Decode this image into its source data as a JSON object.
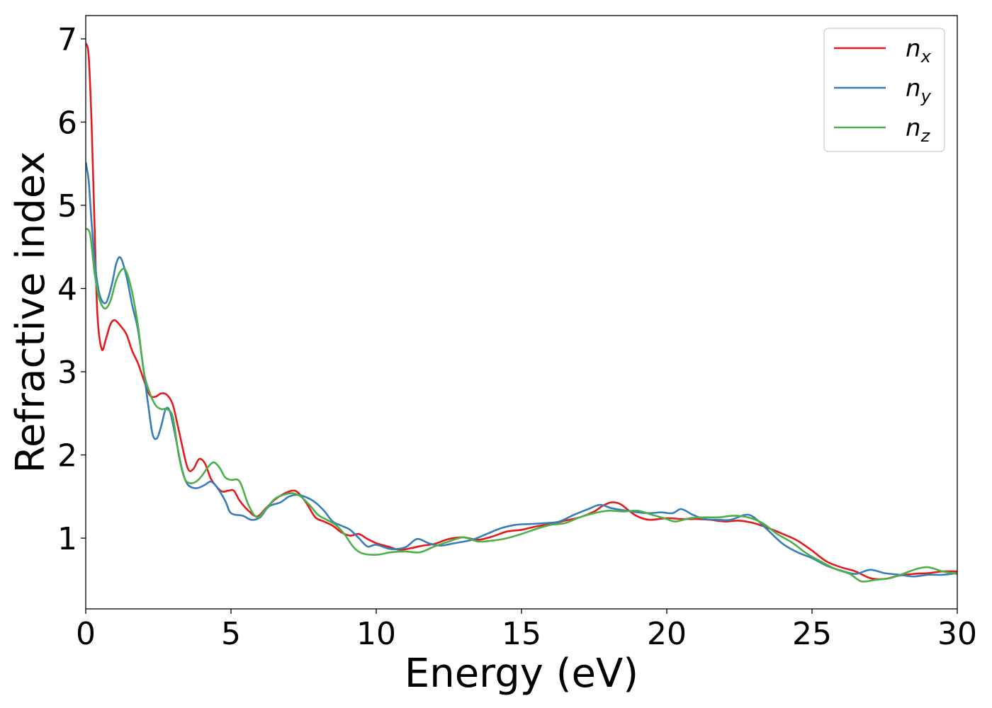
{
  "chart_data": {
    "type": "line",
    "xlabel": "Energy (eV)",
    "ylabel": "Refractive index",
    "xlim": [
      0,
      30
    ],
    "ylim": [
      0.15,
      7.28
    ],
    "xticks": [
      "0",
      "5",
      "10",
      "15",
      "20",
      "25",
      "30"
    ],
    "yticks": [
      "1",
      "2",
      "3",
      "4",
      "5",
      "6",
      "7"
    ],
    "grid": false,
    "legend_position": "top-right",
    "series": [
      {
        "name": "n_x",
        "legend_base": "n",
        "legend_sub": "x",
        "color": "#e41a1c",
        "points": [
          [
            0,
            6.95
          ],
          [
            0.1,
            6.8
          ],
          [
            0.2,
            6.0
          ],
          [
            0.3,
            4.8
          ],
          [
            0.4,
            3.7
          ],
          [
            0.55,
            3.27
          ],
          [
            0.7,
            3.4
          ],
          [
            0.85,
            3.57
          ],
          [
            1.0,
            3.62
          ],
          [
            1.2,
            3.55
          ],
          [
            1.4,
            3.45
          ],
          [
            1.6,
            3.25
          ],
          [
            1.8,
            3.1
          ],
          [
            2.0,
            2.9
          ],
          [
            2.2,
            2.72
          ],
          [
            2.4,
            2.7
          ],
          [
            2.6,
            2.74
          ],
          [
            2.8,
            2.72
          ],
          [
            3.0,
            2.6
          ],
          [
            3.2,
            2.3
          ],
          [
            3.5,
            1.85
          ],
          [
            3.7,
            1.83
          ],
          [
            3.9,
            1.95
          ],
          [
            4.1,
            1.9
          ],
          [
            4.3,
            1.72
          ],
          [
            4.5,
            1.62
          ],
          [
            4.7,
            1.56
          ],
          [
            4.9,
            1.57
          ],
          [
            5.1,
            1.57
          ],
          [
            5.3,
            1.45
          ],
          [
            5.6,
            1.33
          ],
          [
            5.9,
            1.26
          ],
          [
            6.2,
            1.36
          ],
          [
            6.5,
            1.46
          ],
          [
            6.8,
            1.53
          ],
          [
            7.1,
            1.57
          ],
          [
            7.3,
            1.55
          ],
          [
            7.6,
            1.42
          ],
          [
            7.9,
            1.25
          ],
          [
            8.2,
            1.2
          ],
          [
            8.5,
            1.15
          ],
          [
            8.8,
            1.07
          ],
          [
            9.1,
            1.03
          ],
          [
            9.4,
            1.05
          ],
          [
            9.7,
            0.99
          ],
          [
            10.0,
            0.94
          ],
          [
            10.4,
            0.9
          ],
          [
            10.8,
            0.86
          ],
          [
            11.2,
            0.88
          ],
          [
            11.6,
            0.91
          ],
          [
            12.0,
            0.93
          ],
          [
            12.5,
            0.99
          ],
          [
            13.0,
            1.01
          ],
          [
            13.5,
            0.98
          ],
          [
            14.0,
            1.02
          ],
          [
            14.5,
            1.08
          ],
          [
            15.0,
            1.1
          ],
          [
            15.5,
            1.14
          ],
          [
            16.0,
            1.17
          ],
          [
            16.5,
            1.21
          ],
          [
            17.0,
            1.25
          ],
          [
            17.5,
            1.32
          ],
          [
            17.8,
            1.39
          ],
          [
            18.1,
            1.43
          ],
          [
            18.4,
            1.41
          ],
          [
            18.7,
            1.33
          ],
          [
            19.0,
            1.26
          ],
          [
            19.4,
            1.22
          ],
          [
            20.0,
            1.24
          ],
          [
            20.5,
            1.23
          ],
          [
            21.0,
            1.23
          ],
          [
            21.5,
            1.22
          ],
          [
            22.0,
            1.2
          ],
          [
            22.5,
            1.21
          ],
          [
            23.0,
            1.18
          ],
          [
            23.5,
            1.12
          ],
          [
            24.0,
            1.05
          ],
          [
            24.5,
            0.97
          ],
          [
            25.0,
            0.85
          ],
          [
            25.5,
            0.72
          ],
          [
            26.0,
            0.65
          ],
          [
            26.5,
            0.6
          ],
          [
            27.0,
            0.52
          ],
          [
            27.5,
            0.51
          ],
          [
            28.0,
            0.55
          ],
          [
            28.5,
            0.57
          ],
          [
            29.0,
            0.58
          ],
          [
            29.5,
            0.6
          ],
          [
            30.0,
            0.6
          ]
        ]
      },
      {
        "name": "n_y",
        "legend_base": "n",
        "legend_sub": "y",
        "color": "#377eb8",
        "points": [
          [
            0,
            5.52
          ],
          [
            0.1,
            5.3
          ],
          [
            0.2,
            4.8
          ],
          [
            0.35,
            4.2
          ],
          [
            0.5,
            3.9
          ],
          [
            0.7,
            3.83
          ],
          [
            0.9,
            4.05
          ],
          [
            1.05,
            4.3
          ],
          [
            1.2,
            4.37
          ],
          [
            1.4,
            4.15
          ],
          [
            1.6,
            3.8
          ],
          [
            1.8,
            3.5
          ],
          [
            2.0,
            3.0
          ],
          [
            2.15,
            2.6
          ],
          [
            2.3,
            2.25
          ],
          [
            2.45,
            2.2
          ],
          [
            2.6,
            2.35
          ],
          [
            2.75,
            2.55
          ],
          [
            2.9,
            2.52
          ],
          [
            3.1,
            2.2
          ],
          [
            3.3,
            1.85
          ],
          [
            3.5,
            1.65
          ],
          [
            3.8,
            1.6
          ],
          [
            4.1,
            1.64
          ],
          [
            4.3,
            1.68
          ],
          [
            4.5,
            1.62
          ],
          [
            4.8,
            1.45
          ],
          [
            5.0,
            1.3
          ],
          [
            5.4,
            1.27
          ],
          [
            5.7,
            1.22
          ],
          [
            6.0,
            1.25
          ],
          [
            6.3,
            1.38
          ],
          [
            6.7,
            1.43
          ],
          [
            7.0,
            1.5
          ],
          [
            7.3,
            1.52
          ],
          [
            7.6,
            1.49
          ],
          [
            7.9,
            1.43
          ],
          [
            8.2,
            1.33
          ],
          [
            8.5,
            1.2
          ],
          [
            8.8,
            1.15
          ],
          [
            9.1,
            1.1
          ],
          [
            9.4,
            1.0
          ],
          [
            9.7,
            0.9
          ],
          [
            10.0,
            0.92
          ],
          [
            10.5,
            0.87
          ],
          [
            11.0,
            0.89
          ],
          [
            11.4,
            0.99
          ],
          [
            11.8,
            0.94
          ],
          [
            12.2,
            0.91
          ],
          [
            12.7,
            0.94
          ],
          [
            13.3,
            0.98
          ],
          [
            13.8,
            1.05
          ],
          [
            14.3,
            1.12
          ],
          [
            14.8,
            1.16
          ],
          [
            15.3,
            1.17
          ],
          [
            15.8,
            1.18
          ],
          [
            16.3,
            1.2
          ],
          [
            16.8,
            1.28
          ],
          [
            17.3,
            1.35
          ],
          [
            17.7,
            1.4
          ],
          [
            18.1,
            1.36
          ],
          [
            18.6,
            1.33
          ],
          [
            19.0,
            1.31
          ],
          [
            19.4,
            1.3
          ],
          [
            19.8,
            1.31
          ],
          [
            20.2,
            1.3
          ],
          [
            20.5,
            1.35
          ],
          [
            20.9,
            1.28
          ],
          [
            21.3,
            1.23
          ],
          [
            21.8,
            1.22
          ],
          [
            22.2,
            1.22
          ],
          [
            22.7,
            1.28
          ],
          [
            23.0,
            1.25
          ],
          [
            23.5,
            1.09
          ],
          [
            24.0,
            0.93
          ],
          [
            24.5,
            0.83
          ],
          [
            25.0,
            0.76
          ],
          [
            25.5,
            0.67
          ],
          [
            26.0,
            0.61
          ],
          [
            26.5,
            0.57
          ],
          [
            27.0,
            0.62
          ],
          [
            27.5,
            0.58
          ],
          [
            28.0,
            0.56
          ],
          [
            28.5,
            0.54
          ],
          [
            29.0,
            0.56
          ],
          [
            29.5,
            0.56
          ],
          [
            30.0,
            0.58
          ]
        ]
      },
      {
        "name": "n_z",
        "legend_base": "n",
        "legend_sub": "z",
        "color": "#4daf4a",
        "points": [
          [
            0,
            4.72
          ],
          [
            0.15,
            4.65
          ],
          [
            0.3,
            4.2
          ],
          [
            0.45,
            3.9
          ],
          [
            0.65,
            3.76
          ],
          [
            0.85,
            3.85
          ],
          [
            1.05,
            4.1
          ],
          [
            1.25,
            4.23
          ],
          [
            1.4,
            4.2
          ],
          [
            1.6,
            3.95
          ],
          [
            1.8,
            3.55
          ],
          [
            2.0,
            3.0
          ],
          [
            2.2,
            2.75
          ],
          [
            2.4,
            2.6
          ],
          [
            2.6,
            2.55
          ],
          [
            2.8,
            2.55
          ],
          [
            3.0,
            2.45
          ],
          [
            3.2,
            2.0
          ],
          [
            3.4,
            1.72
          ],
          [
            3.6,
            1.66
          ],
          [
            3.8,
            1.68
          ],
          [
            4.0,
            1.75
          ],
          [
            4.2,
            1.85
          ],
          [
            4.4,
            1.91
          ],
          [
            4.6,
            1.85
          ],
          [
            4.8,
            1.73
          ],
          [
            5.0,
            1.7
          ],
          [
            5.3,
            1.68
          ],
          [
            5.6,
            1.4
          ],
          [
            5.9,
            1.25
          ],
          [
            6.2,
            1.35
          ],
          [
            6.5,
            1.47
          ],
          [
            6.8,
            1.52
          ],
          [
            7.1,
            1.54
          ],
          [
            7.4,
            1.5
          ],
          [
            7.7,
            1.4
          ],
          [
            8.0,
            1.28
          ],
          [
            8.3,
            1.22
          ],
          [
            8.6,
            1.16
          ],
          [
            8.9,
            1.05
          ],
          [
            9.2,
            0.9
          ],
          [
            9.5,
            0.82
          ],
          [
            10.0,
            0.8
          ],
          [
            10.5,
            0.83
          ],
          [
            11.0,
            0.84
          ],
          [
            11.5,
            0.83
          ],
          [
            12.0,
            0.9
          ],
          [
            12.5,
            0.96
          ],
          [
            13.0,
            1.01
          ],
          [
            13.5,
            0.96
          ],
          [
            14.0,
            0.97
          ],
          [
            14.5,
            1.0
          ],
          [
            15.0,
            1.05
          ],
          [
            15.5,
            1.11
          ],
          [
            16.0,
            1.16
          ],
          [
            16.5,
            1.18
          ],
          [
            17.0,
            1.25
          ],
          [
            17.5,
            1.3
          ],
          [
            18.0,
            1.33
          ],
          [
            18.5,
            1.32
          ],
          [
            19.0,
            1.33
          ],
          [
            19.5,
            1.28
          ],
          [
            20.0,
            1.23
          ],
          [
            20.3,
            1.2
          ],
          [
            20.8,
            1.24
          ],
          [
            21.3,
            1.25
          ],
          [
            21.8,
            1.25
          ],
          [
            22.3,
            1.27
          ],
          [
            22.8,
            1.25
          ],
          [
            23.3,
            1.18
          ],
          [
            23.8,
            1.05
          ],
          [
            24.3,
            0.95
          ],
          [
            24.8,
            0.82
          ],
          [
            25.3,
            0.72
          ],
          [
            25.8,
            0.63
          ],
          [
            26.3,
            0.57
          ],
          [
            26.7,
            0.48
          ],
          [
            27.2,
            0.5
          ],
          [
            27.7,
            0.52
          ],
          [
            28.2,
            0.58
          ],
          [
            28.6,
            0.63
          ],
          [
            29.0,
            0.65
          ],
          [
            29.5,
            0.6
          ],
          [
            30.0,
            0.57
          ]
        ]
      }
    ]
  }
}
